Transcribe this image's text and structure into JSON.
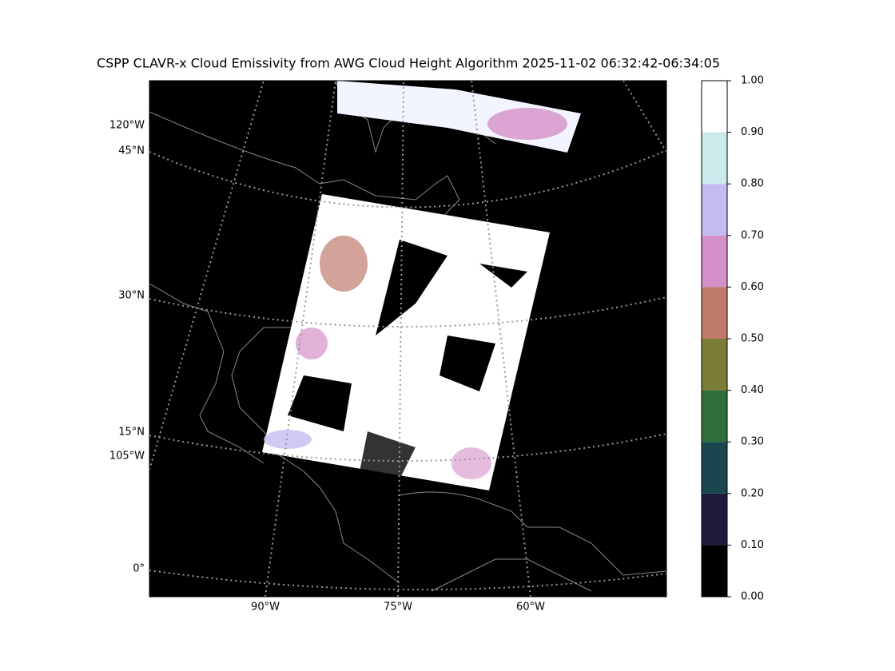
{
  "map": {
    "title": "CSPP CLAVR-x Cloud Emissivity from AWG Cloud Height Algorithm 2025-11-02 06:32:42-06:34:05",
    "lat_labels": [
      "45°N",
      "30°N",
      "15°N",
      "0°"
    ],
    "lon_labels_left": [
      "120°W",
      "105°W"
    ],
    "lon_labels_bottom": [
      "90°W",
      "75°W",
      "60°W"
    ],
    "colorbar": {
      "lim": [
        0,
        1
      ],
      "ticks": [
        {
          "value": 0,
          "label": "0.00"
        },
        {
          "value": 0.1,
          "label": "0.10"
        },
        {
          "value": 0.2,
          "label": "0.20"
        },
        {
          "value": 0.3,
          "label": "0.30"
        },
        {
          "value": 0.4,
          "label": "0.40"
        },
        {
          "value": 0.5,
          "label": "0.50"
        },
        {
          "value": 0.6,
          "label": "0.60"
        },
        {
          "value": 0.7,
          "label": "0.70"
        },
        {
          "value": 0.8,
          "label": "0.80"
        },
        {
          "value": 0.9,
          "label": "0.90"
        },
        {
          "value": 1,
          "label": "1.00"
        }
      ],
      "colors": [
        "#000000",
        "#1e1a3c",
        "#1a4650",
        "#2e6e3c",
        "#7a7d35",
        "#c07a6c",
        "#d490c8",
        "#c4bcf0",
        "#cce9ec",
        "#ffffff"
      ]
    }
  }
}
